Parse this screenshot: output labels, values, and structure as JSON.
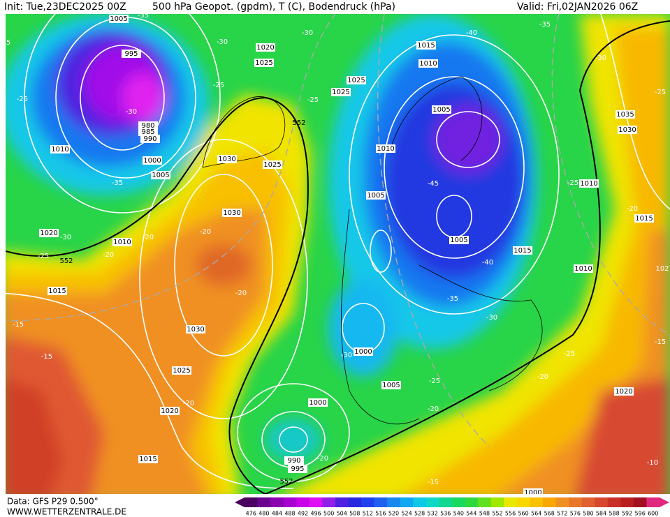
{
  "header": {
    "init": "Init: Tue,23DEC2025 00Z",
    "title": "500 hPa Geopot. (gpdm), T (C), Bodendruck (hPa)",
    "valid": "Valid: Fri,02JAN2026 06Z"
  },
  "footer": {
    "data_source": "Data: GFS P29 0.500°",
    "website": "WWW.WETTERZENTRALE.DE"
  },
  "colorbar": {
    "levels": [
      476,
      480,
      484,
      488,
      492,
      496,
      500,
      504,
      508,
      512,
      516,
      520,
      524,
      528,
      532,
      536,
      540,
      544,
      548,
      552,
      556,
      560,
      564,
      568,
      572,
      576,
      580,
      584,
      588,
      592,
      596,
      600
    ],
    "colors": [
      "#4a0060",
      "#6a0090",
      "#8a00b0",
      "#a800d0",
      "#c800e8",
      "#e010f0",
      "#9020e8",
      "#5020e0",
      "#2828e0",
      "#2040f0",
      "#2060f0",
      "#1888f0",
      "#10a8f0",
      "#10c8e8",
      "#10d8c8",
      "#10d890",
      "#18d860",
      "#30d840",
      "#60e020",
      "#a0e800",
      "#e8e800",
      "#f8d800",
      "#f8c000",
      "#f8a800",
      "#f09020",
      "#e87828",
      "#e06030",
      "#d84830",
      "#c83028",
      "#b82020",
      "#a01020",
      "#e02880"
    ]
  },
  "isobar_labels": [
    "1005",
    "995",
    "980",
    "985",
    "990",
    "1010",
    "1000",
    "1005",
    "1020",
    "1010",
    "1015",
    "1030",
    "1030",
    "1025",
    "1020",
    "1025",
    "1025",
    "1025",
    "1015",
    "1010",
    "1005",
    "1010",
    "1005",
    "1005",
    "1015",
    "1010",
    "1035",
    "1030",
    "1010",
    "1015",
    "1030",
    "1025",
    "1020",
    "1000",
    "1005",
    "1000",
    "990",
    "995",
    "1020",
    "1015",
    "1000"
  ],
  "temperature_labels": [
    "-35",
    "-30",
    "-30",
    "-25",
    "-25",
    "-30",
    "-25",
    "-35",
    "-30",
    "-20",
    "-25",
    "-20",
    "-20",
    "-20",
    "-15",
    "-15",
    "-20",
    "-40",
    "-35",
    "-30",
    "-25",
    "-45",
    "-25",
    "-20",
    "-40",
    "-35",
    "-30",
    "-30",
    "-25",
    "-25",
    "-20",
    "-20",
    "-15",
    "-20",
    "-10",
    "-15",
    "5",
    "102"
  ],
  "geopotential_labels": [
    "552",
    "552",
    "552"
  ]
}
